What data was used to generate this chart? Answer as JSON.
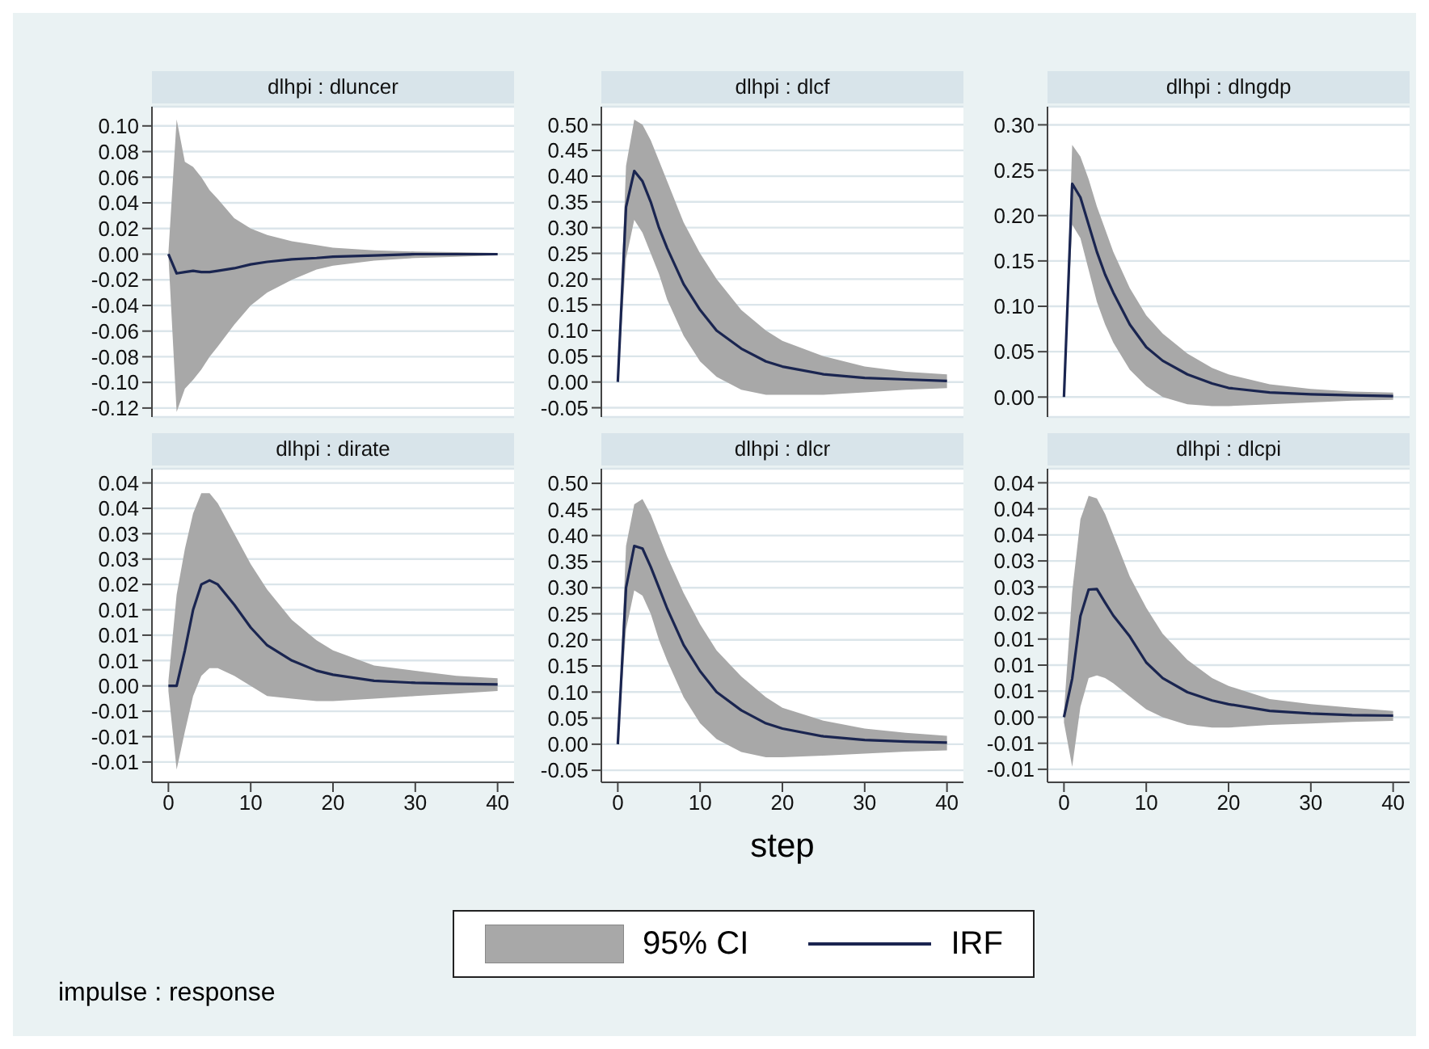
{
  "chart_data": [
    {
      "type": "line",
      "title": "dlhpi : dluncer",
      "x": [
        0,
        1,
        2,
        3,
        4,
        5,
        6,
        8,
        10,
        12,
        15,
        18,
        20,
        25,
        30,
        35,
        40
      ],
      "xlim": [
        -2,
        42
      ],
      "xticks": [
        0,
        10,
        20,
        30,
        40
      ],
      "ylim": [
        -0.127,
        0.115
      ],
      "yticks": [
        {
          "value": -0.12,
          "label": "-0.12"
        },
        {
          "value": -0.1,
          "label": "-0.10"
        },
        {
          "value": -0.08,
          "label": "-0.08"
        },
        {
          "value": -0.06,
          "label": "-0.06"
        },
        {
          "value": -0.04,
          "label": "-0.04"
        },
        {
          "value": -0.02,
          "label": "-0.02"
        },
        {
          "value": 0,
          "label": "0.00"
        },
        {
          "value": 0.02,
          "label": "0.02"
        },
        {
          "value": 0.04,
          "label": "0.04"
        },
        {
          "value": 0.06,
          "label": "0.06"
        },
        {
          "value": 0.08,
          "label": "0.08"
        },
        {
          "value": 0.1,
          "label": "0.10"
        }
      ],
      "grid": "y",
      "tick_labels": "y",
      "legend": false,
      "series": [
        {
          "color": "#1a2550",
          "values": [
            0,
            -0.015,
            -0.014,
            -0.013,
            -0.014,
            -0.014,
            -0.013,
            -0.011,
            -0.008,
            -0.006,
            -0.004,
            -0.003,
            -0.002,
            -0.001,
            0,
            0,
            0
          ],
          "lower": [
            -0.001,
            -0.123,
            -0.105,
            -0.098,
            -0.09,
            -0.08,
            -0.072,
            -0.055,
            -0.04,
            -0.03,
            -0.02,
            -0.012,
            -0.009,
            -0.005,
            -0.003,
            -0.002,
            -0.001
          ],
          "upper": [
            0.001,
            0.105,
            0.072,
            0.068,
            0.06,
            0.05,
            0.043,
            0.028,
            0.02,
            0.015,
            0.01,
            0.007,
            0.005,
            0.003,
            0.002,
            0.0015,
            0.001
          ]
        }
      ]
    },
    {
      "type": "line",
      "title": "dlhpi : dlcf",
      "x": [
        0,
        1,
        2,
        3,
        4,
        5,
        6,
        8,
        10,
        12,
        15,
        18,
        20,
        25,
        30,
        35,
        40
      ],
      "xlim": [
        -2,
        42
      ],
      "xticks": [
        0,
        10,
        20,
        30,
        40
      ],
      "ylim": [
        -0.068,
        0.535
      ],
      "yticks": [
        {
          "value": -0.05,
          "label": "-0.05"
        },
        {
          "value": 0,
          "label": "0.00"
        },
        {
          "value": 0.05,
          "label": "0.05"
        },
        {
          "value": 0.1,
          "label": "0.10"
        },
        {
          "value": 0.15,
          "label": "0.15"
        },
        {
          "value": 0.2,
          "label": "0.20"
        },
        {
          "value": 0.25,
          "label": "0.25"
        },
        {
          "value": 0.3,
          "label": "0.30"
        },
        {
          "value": 0.35,
          "label": "0.35"
        },
        {
          "value": 0.4,
          "label": "0.40"
        },
        {
          "value": 0.45,
          "label": "0.45"
        },
        {
          "value": 0.5,
          "label": "0.50"
        }
      ],
      "grid": "y",
      "tick_labels": "y",
      "legend": false,
      "series": [
        {
          "color": "#1a2550",
          "values": [
            0,
            0.34,
            0.41,
            0.39,
            0.35,
            0.3,
            0.26,
            0.19,
            0.14,
            0.1,
            0.065,
            0.04,
            0.03,
            0.015,
            0.008,
            0.005,
            0.002
          ],
          "lower": [
            0,
            0.24,
            0.315,
            0.29,
            0.25,
            0.21,
            0.16,
            0.09,
            0.04,
            0.01,
            -0.015,
            -0.025,
            -0.025,
            -0.025,
            -0.02,
            -0.015,
            -0.012
          ],
          "upper": [
            0,
            0.42,
            0.51,
            0.5,
            0.47,
            0.43,
            0.39,
            0.31,
            0.25,
            0.2,
            0.14,
            0.1,
            0.08,
            0.05,
            0.03,
            0.02,
            0.015
          ]
        }
      ]
    },
    {
      "type": "line",
      "title": "dlhpi : dlngdp",
      "x": [
        0,
        1,
        2,
        3,
        4,
        5,
        6,
        8,
        10,
        12,
        15,
        18,
        20,
        25,
        30,
        35,
        40
      ],
      "xlim": [
        -2,
        42
      ],
      "xticks": [
        0,
        10,
        20,
        30,
        40
      ],
      "ylim": [
        -0.022,
        0.32
      ],
      "yticks": [
        {
          "value": 0,
          "label": "0.00"
        },
        {
          "value": 0.05,
          "label": "0.05"
        },
        {
          "value": 0.1,
          "label": "0.10"
        },
        {
          "value": 0.15,
          "label": "0.15"
        },
        {
          "value": 0.2,
          "label": "0.20"
        },
        {
          "value": 0.25,
          "label": "0.25"
        },
        {
          "value": 0.3,
          "label": "0.30"
        }
      ],
      "grid": "y",
      "tick_labels": "y",
      "legend": false,
      "series": [
        {
          "color": "#1a2550",
          "values": [
            0,
            0.235,
            0.22,
            0.19,
            0.16,
            0.135,
            0.115,
            0.08,
            0.055,
            0.04,
            0.025,
            0.015,
            0.01,
            0.005,
            0.003,
            0.002,
            0.001
          ],
          "lower": [
            0,
            0.19,
            0.175,
            0.14,
            0.105,
            0.08,
            0.06,
            0.03,
            0.012,
            0,
            -0.008,
            -0.01,
            -0.01,
            -0.008,
            -0.006,
            -0.004,
            -0.003
          ],
          "upper": [
            0,
            0.278,
            0.265,
            0.24,
            0.21,
            0.185,
            0.16,
            0.12,
            0.09,
            0.07,
            0.048,
            0.032,
            0.025,
            0.014,
            0.009,
            0.006,
            0.005
          ]
        }
      ]
    },
    {
      "type": "line",
      "title": "dlhpi : dirate",
      "x": [
        0,
        1,
        2,
        3,
        4,
        5,
        6,
        8,
        10,
        12,
        15,
        18,
        20,
        25,
        30,
        35,
        40
      ],
      "xlim": [
        -2,
        42
      ],
      "xticks": [
        0,
        10,
        20,
        30,
        40
      ],
      "ylim": [
        -0.019,
        0.0428
      ],
      "yticks": [
        {
          "value": -0.015,
          "label": "-0.01"
        },
        {
          "value": -0.01,
          "label": "-0.01"
        },
        {
          "value": -0.005,
          "label": "-0.01"
        },
        {
          "value": 0,
          "label": "0.00"
        },
        {
          "value": 0.005,
          "label": "0.01"
        },
        {
          "value": 0.01,
          "label": "0.01"
        },
        {
          "value": 0.015,
          "label": "0.01"
        },
        {
          "value": 0.02,
          "label": "0.02"
        },
        {
          "value": 0.025,
          "label": "0.03"
        },
        {
          "value": 0.03,
          "label": "0.03"
        },
        {
          "value": 0.035,
          "label": "0.04"
        },
        {
          "value": 0.04,
          "label": "0.04"
        }
      ],
      "grid": "y",
      "legend": false,
      "series": [
        {
          "color": "#1a2550",
          "values": [
            0,
            0,
            0.007,
            0.015,
            0.02,
            0.0208,
            0.02,
            0.016,
            0.0115,
            0.008,
            0.005,
            0.003,
            0.0022,
            0.001,
            0.0006,
            0.0004,
            0.0003
          ],
          "lower": [
            -0.001,
            -0.0165,
            -0.009,
            -0.002,
            0.002,
            0.0035,
            0.0035,
            0.002,
            0,
            -0.002,
            -0.0025,
            -0.003,
            -0.003,
            -0.0025,
            -0.002,
            -0.0015,
            -0.001
          ],
          "upper": [
            0.001,
            0.018,
            0.027,
            0.034,
            0.038,
            0.038,
            0.036,
            0.03,
            0.024,
            0.019,
            0.013,
            0.009,
            0.007,
            0.004,
            0.003,
            0.002,
            0.0015
          ]
        }
      ]
    },
    {
      "type": "line",
      "title": "dlhpi : dlcr",
      "xlabel": "step",
      "x": [
        0,
        1,
        2,
        3,
        4,
        5,
        6,
        8,
        10,
        12,
        15,
        18,
        20,
        25,
        30,
        35,
        40
      ],
      "xlim": [
        -2,
        42
      ],
      "xticks": [
        0,
        10,
        20,
        30,
        40
      ],
      "ylim": [
        -0.073,
        0.528
      ],
      "yticks": [
        {
          "value": -0.05,
          "label": "-0.05"
        },
        {
          "value": 0,
          "label": "0.00"
        },
        {
          "value": 0.05,
          "label": "0.05"
        },
        {
          "value": 0.1,
          "label": "0.10"
        },
        {
          "value": 0.15,
          "label": "0.15"
        },
        {
          "value": 0.2,
          "label": "0.20"
        },
        {
          "value": 0.25,
          "label": "0.25"
        },
        {
          "value": 0.3,
          "label": "0.30"
        },
        {
          "value": 0.35,
          "label": "0.35"
        },
        {
          "value": 0.4,
          "label": "0.40"
        },
        {
          "value": 0.45,
          "label": "0.45"
        },
        {
          "value": 0.5,
          "label": "0.50"
        }
      ],
      "grid": "y",
      "legend": "bottom",
      "annotations": [
        "95% CI",
        "impulse : response"
      ],
      "series": [
        {
          "name": "IRF",
          "color": "#1a2550",
          "values": [
            0,
            0.3,
            0.38,
            0.375,
            0.34,
            0.3,
            0.26,
            0.19,
            0.14,
            0.1,
            0.065,
            0.04,
            0.03,
            0.015,
            0.008,
            0.005,
            0.003
          ],
          "lower": [
            0,
            0.22,
            0.295,
            0.285,
            0.25,
            0.2,
            0.16,
            0.09,
            0.04,
            0.01,
            -0.015,
            -0.025,
            -0.025,
            -0.022,
            -0.018,
            -0.014,
            -0.012
          ],
          "upper": [
            0,
            0.38,
            0.46,
            0.47,
            0.44,
            0.4,
            0.36,
            0.29,
            0.23,
            0.18,
            0.13,
            0.09,
            0.07,
            0.045,
            0.03,
            0.022,
            0.016
          ]
        }
      ]
    },
    {
      "type": "line",
      "title": "dlhpi : dlcpi",
      "x": [
        0,
        1,
        2,
        3,
        4,
        5,
        6,
        8,
        10,
        12,
        15,
        18,
        20,
        25,
        30,
        35,
        40
      ],
      "xlim": [
        -2,
        42
      ],
      "xticks": [
        0,
        10,
        20,
        30,
        40
      ],
      "ylim": [
        -0.0125,
        0.0477
      ],
      "yticks": [
        {
          "value": -0.01,
          "label": "-0.01"
        },
        {
          "value": -0.005,
          "label": "-0.01"
        },
        {
          "value": 0,
          "label": "0.00"
        },
        {
          "value": 0.005,
          "label": "0.01"
        },
        {
          "value": 0.01,
          "label": "0.01"
        },
        {
          "value": 0.015,
          "label": "0.01"
        },
        {
          "value": 0.02,
          "label": "0.02"
        },
        {
          "value": 0.025,
          "label": "0.03"
        },
        {
          "value": 0.03,
          "label": "0.03"
        },
        {
          "value": 0.035,
          "label": "0.04"
        },
        {
          "value": 0.04,
          "label": "0.04"
        },
        {
          "value": 0.045,
          "label": "0.04"
        }
      ],
      "grid": "y",
      "legend": false,
      "series": [
        {
          "color": "#1a2550",
          "values": [
            0,
            0.0074,
            0.0194,
            0.0245,
            0.0246,
            0.022,
            0.0195,
            0.0155,
            0.0105,
            0.0075,
            0.0048,
            0.0032,
            0.0025,
            0.0012,
            0.0007,
            0.0004,
            0.0003
          ],
          "lower": [
            -0.001,
            -0.0095,
            0.002,
            0.0075,
            0.008,
            0.0075,
            0.0065,
            0.004,
            0.0015,
            0,
            -0.0015,
            -0.002,
            -0.002,
            -0.0015,
            -0.0012,
            -0.0009,
            -0.0007
          ],
          "upper": [
            0.001,
            0.024,
            0.038,
            0.0425,
            0.042,
            0.039,
            0.035,
            0.027,
            0.021,
            0.016,
            0.011,
            0.0075,
            0.006,
            0.0035,
            0.0025,
            0.0018,
            0.0012
          ]
        }
      ]
    }
  ]
}
